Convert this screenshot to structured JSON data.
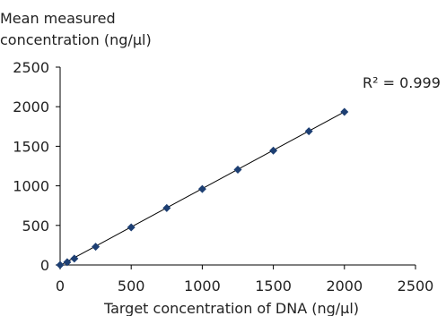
{
  "chart_data": {
    "type": "scatter",
    "title": "",
    "ylabel_lines": [
      "Mean measured",
      "concentration (ng/µl)"
    ],
    "xlabel": "Target concentration of DNA (ng/µl)",
    "xlim": [
      0,
      2500
    ],
    "ylim": [
      0,
      2500
    ],
    "x_ticks": [
      0,
      500,
      1000,
      1500,
      2000,
      2500
    ],
    "y_ticks": [
      0,
      500,
      1000,
      1500,
      2000,
      2500
    ],
    "x_tick_labels": [
      "0",
      "500",
      "1000",
      "1500",
      "2000",
      "2500"
    ],
    "y_tick_labels": [
      "0",
      "500",
      "1000",
      "1500",
      "2000",
      "2500"
    ],
    "grid": false,
    "legend": "none",
    "marker": "diamond",
    "marker_color": "#1d3f73",
    "line_color": "#000000",
    "series": [
      {
        "x": [
          0,
          50,
          100,
          250,
          500,
          750,
          1000,
          1250,
          1500,
          1750,
          2000
        ],
        "y": [
          0,
          35,
          80,
          230,
          475,
          720,
          960,
          1205,
          1445,
          1690,
          1935
        ]
      }
    ],
    "trendline": {
      "x": [
        0,
        2000
      ],
      "y": [
        -5,
        1935
      ]
    },
    "annotation": "R² = 0.999"
  }
}
